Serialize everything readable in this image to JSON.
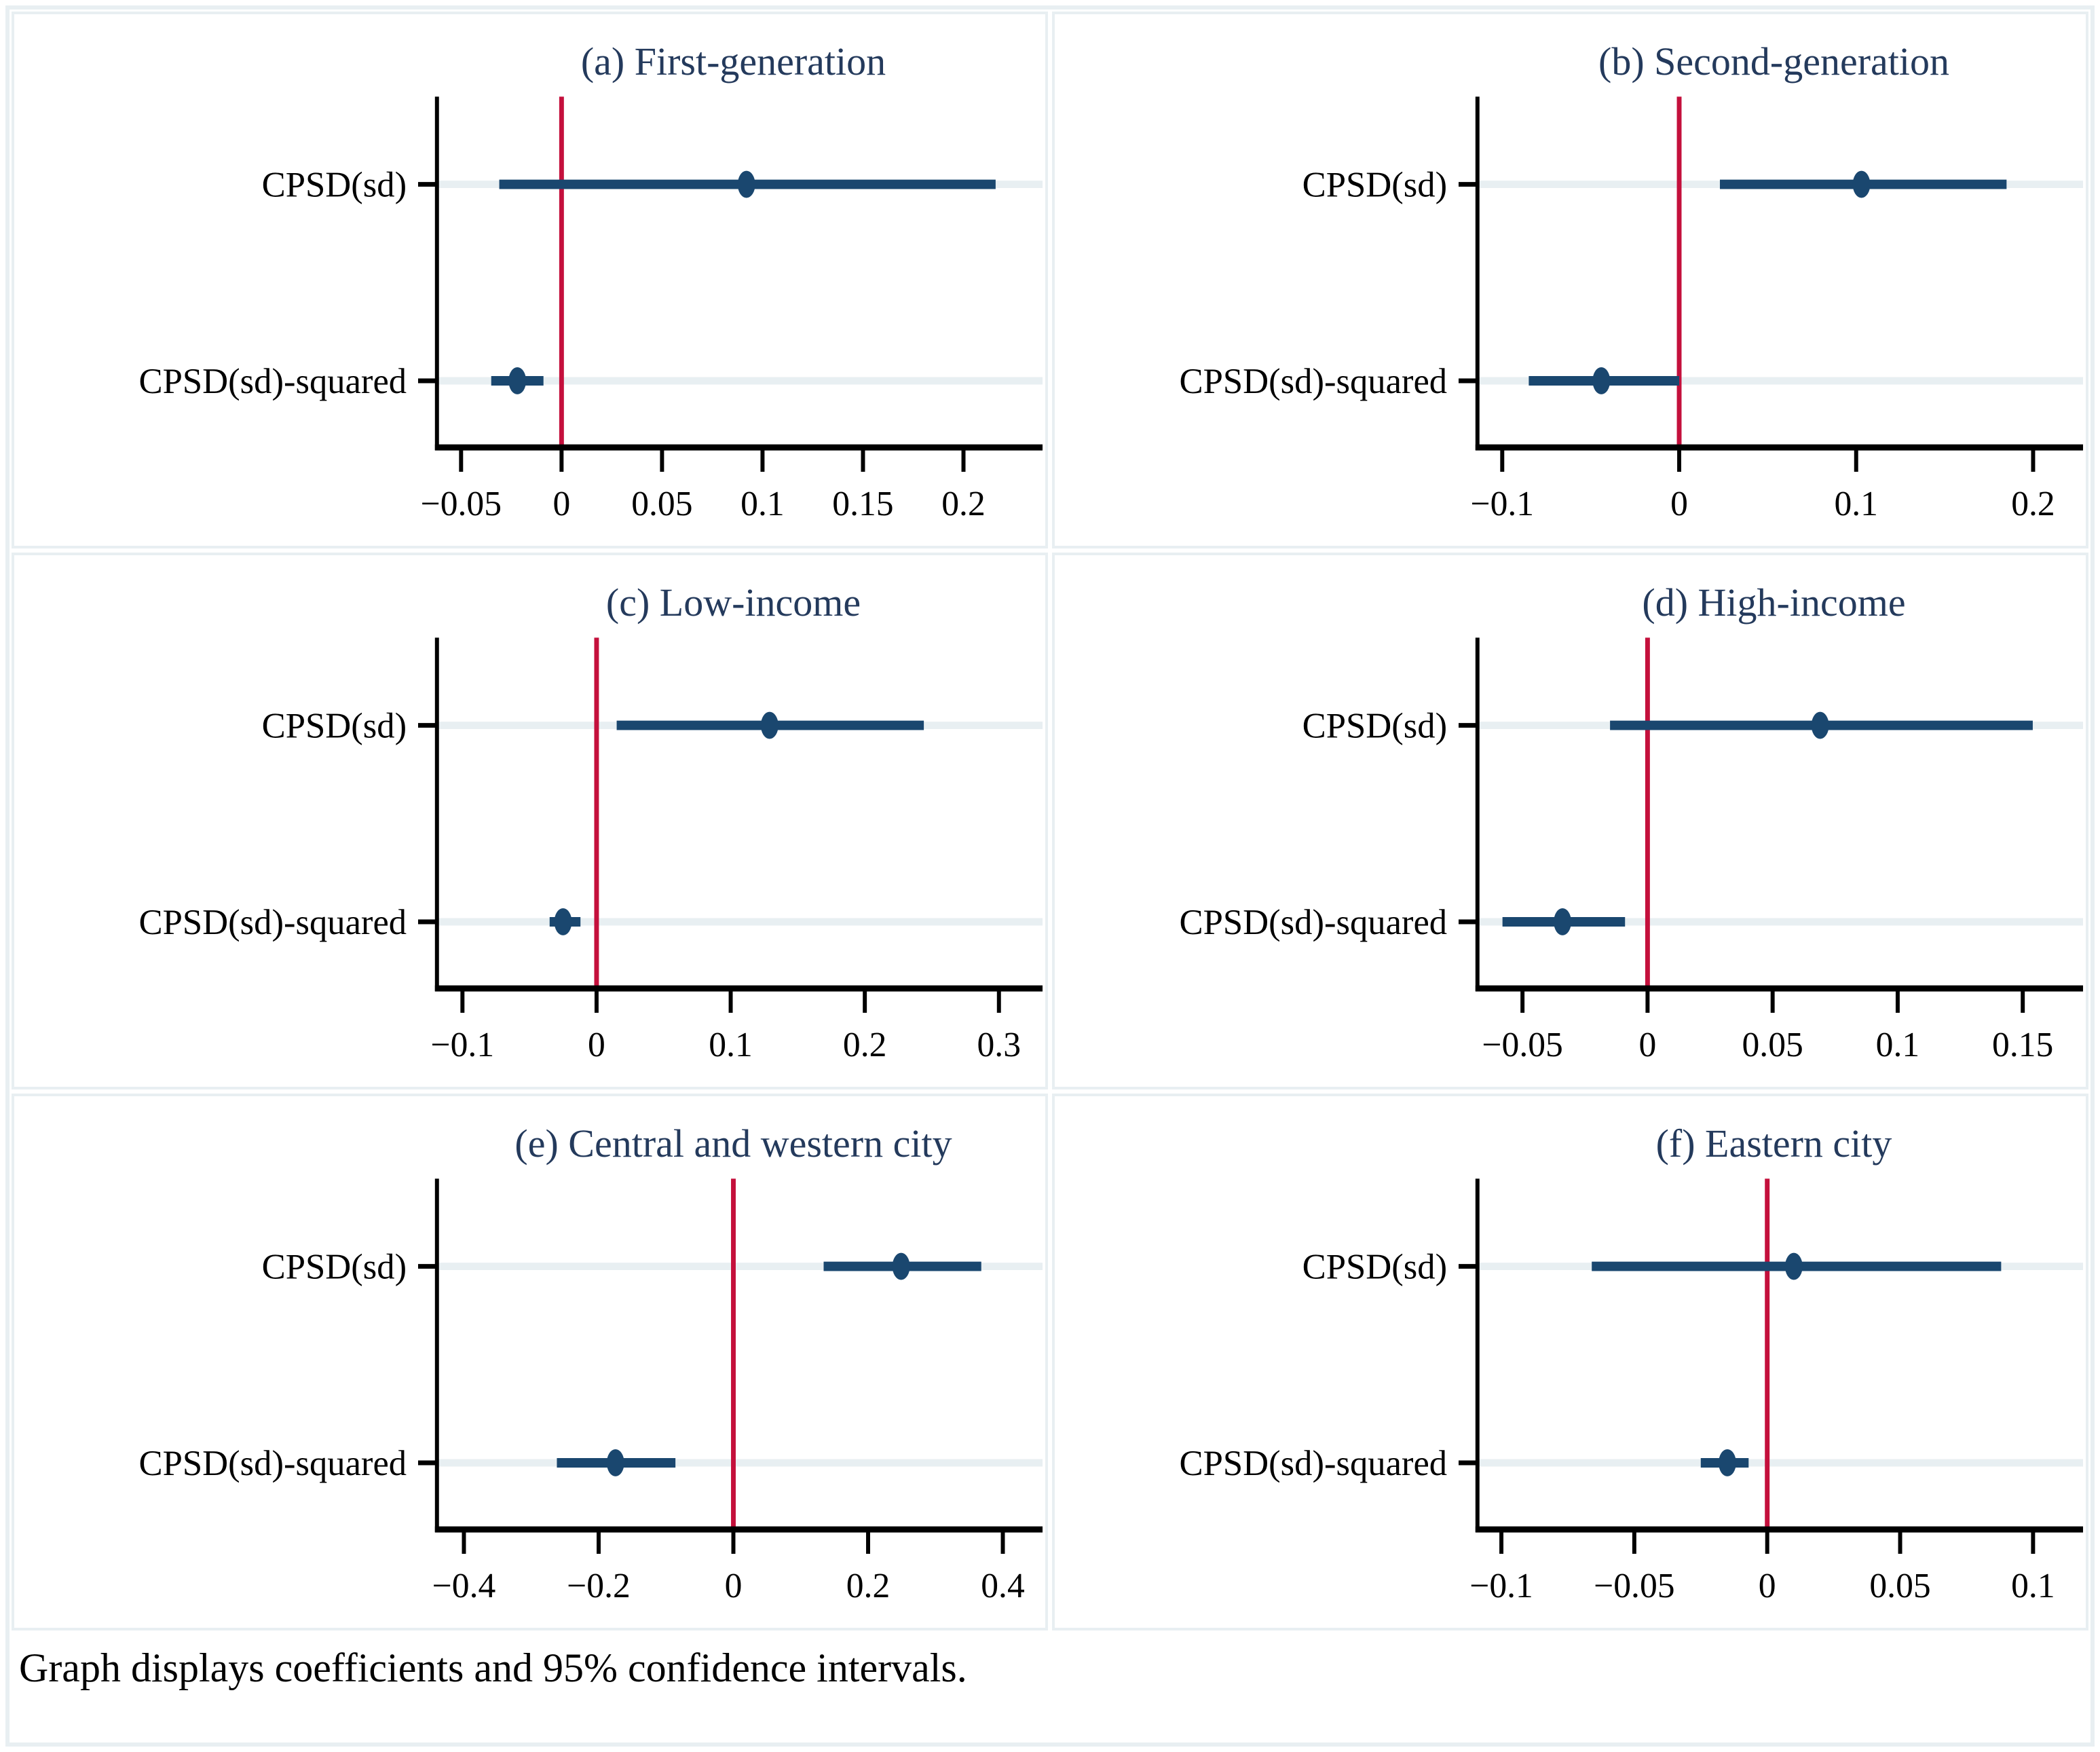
{
  "figure": {
    "note": "Graph displays coefficients and 95% confidence intervals.",
    "colors": {
      "estimate_navy": "#1a476f",
      "zero_line_red": "#c4103c",
      "grid_light_blue": "#e8eff2",
      "title_navy": "#243a5c",
      "axis_black": "#000000"
    }
  },
  "chart_data": [
    {
      "type": "scatter",
      "id": "a",
      "title": "(a) First-generation",
      "orientation": "horizontal",
      "ylabel_categories": [
        "CPSD(sd)",
        "CPSD(sd)-squared"
      ],
      "points": [
        {
          "label": "CPSD(sd)",
          "estimate": 0.092,
          "ci_low": -0.031,
          "ci_high": 0.216
        },
        {
          "label": "CPSD(sd)-squared",
          "estimate": -0.022,
          "ci_low": -0.035,
          "ci_high": -0.009
        }
      ],
      "zero_line": 0,
      "xlim": [
        -0.062,
        0.233
      ],
      "x_ticks": [
        {
          "value": -0.05,
          "label": "−0.05"
        },
        {
          "value": 0,
          "label": "0"
        },
        {
          "value": 0.05,
          "label": "0.05"
        },
        {
          "value": 0.1,
          "label": "0.1"
        },
        {
          "value": 0.15,
          "label": "0.15"
        },
        {
          "value": 0.2,
          "label": "0.2"
        }
      ]
    },
    {
      "type": "scatter",
      "id": "b",
      "title": "(b) Second-generation",
      "orientation": "horizontal",
      "ylabel_categories": [
        "CPSD(sd)",
        "CPSD(sd)-squared"
      ],
      "points": [
        {
          "label": "CPSD(sd)",
          "estimate": 0.103,
          "ci_low": 0.023,
          "ci_high": 0.185
        },
        {
          "label": "CPSD(sd)-squared",
          "estimate": -0.044,
          "ci_low": -0.085,
          "ci_high": 0.0
        }
      ],
      "zero_line": 0,
      "xlim": [
        -0.114,
        0.221
      ],
      "x_ticks": [
        {
          "value": -0.1,
          "label": "−0.1"
        },
        {
          "value": 0,
          "label": "0"
        },
        {
          "value": 0.1,
          "label": "0.1"
        },
        {
          "value": 0.2,
          "label": "0.2"
        }
      ]
    },
    {
      "type": "scatter",
      "id": "c",
      "title": "(c) Low-income",
      "orientation": "horizontal",
      "ylabel_categories": [
        "CPSD(sd)",
        "CPSD(sd)-squared"
      ],
      "points": [
        {
          "label": "CPSD(sd)",
          "estimate": 0.129,
          "ci_low": 0.015,
          "ci_high": 0.244
        },
        {
          "label": "CPSD(sd)-squared",
          "estimate": -0.025,
          "ci_low": -0.035,
          "ci_high": -0.012
        }
      ],
      "zero_line": 0,
      "xlim": [
        -0.119,
        0.323
      ],
      "x_ticks": [
        {
          "value": -0.1,
          "label": "−0.1"
        },
        {
          "value": 0,
          "label": "0"
        },
        {
          "value": 0.1,
          "label": "0.1"
        },
        {
          "value": 0.2,
          "label": "0.2"
        },
        {
          "value": 0.3,
          "label": "0.3"
        }
      ]
    },
    {
      "type": "scatter",
      "id": "d",
      "title": "(d) High-income",
      "orientation": "horizontal",
      "ylabel_categories": [
        "CPSD(sd)",
        "CPSD(sd)-squared"
      ],
      "points": [
        {
          "label": "CPSD(sd)",
          "estimate": 0.069,
          "ci_low": -0.015,
          "ci_high": 0.154
        },
        {
          "label": "CPSD(sd)-squared",
          "estimate": -0.034,
          "ci_low": -0.058,
          "ci_high": -0.009
        }
      ],
      "zero_line": 0,
      "xlim": [
        -0.068,
        0.169
      ],
      "x_ticks": [
        {
          "value": -0.05,
          "label": "−0.05"
        },
        {
          "value": 0,
          "label": "0"
        },
        {
          "value": 0.05,
          "label": "0.05"
        },
        {
          "value": 0.1,
          "label": "0.1"
        },
        {
          "value": 0.15,
          "label": "0.15"
        }
      ]
    },
    {
      "type": "scatter",
      "id": "e",
      "title": "(e) Central and western city",
      "orientation": "horizontal",
      "ylabel_categories": [
        "CPSD(sd)",
        "CPSD(sd)-squared"
      ],
      "points": [
        {
          "label": "CPSD(sd)",
          "estimate": 0.249,
          "ci_low": 0.134,
          "ci_high": 0.368
        },
        {
          "label": "CPSD(sd)-squared",
          "estimate": -0.175,
          "ci_low": -0.262,
          "ci_high": -0.086
        }
      ],
      "zero_line": 0,
      "xlim": [
        -0.44,
        0.44
      ],
      "x_ticks": [
        {
          "value": -0.4,
          "label": "−0.4"
        },
        {
          "value": -0.2,
          "label": "−0.2"
        },
        {
          "value": 0,
          "label": "0"
        },
        {
          "value": 0.2,
          "label": "0.2"
        },
        {
          "value": 0.4,
          "label": "0.4"
        }
      ]
    },
    {
      "type": "scatter",
      "id": "f",
      "title": "(f) Eastern city",
      "orientation": "horizontal",
      "ylabel_categories": [
        "CPSD(sd)",
        "CPSD(sd)-squared"
      ],
      "points": [
        {
          "label": "CPSD(sd)",
          "estimate": 0.01,
          "ci_low": -0.066,
          "ci_high": 0.088
        },
        {
          "label": "CPSD(sd)-squared",
          "estimate": -0.015,
          "ci_low": -0.025,
          "ci_high": -0.007
        }
      ],
      "zero_line": 0,
      "xlim": [
        -0.109,
        0.114
      ],
      "x_ticks": [
        {
          "value": -0.1,
          "label": "−0.1"
        },
        {
          "value": -0.05,
          "label": "−0.05"
        },
        {
          "value": 0,
          "label": "0"
        },
        {
          "value": 0.05,
          "label": "0.05"
        },
        {
          "value": 0.1,
          "label": "0.1"
        }
      ]
    }
  ]
}
